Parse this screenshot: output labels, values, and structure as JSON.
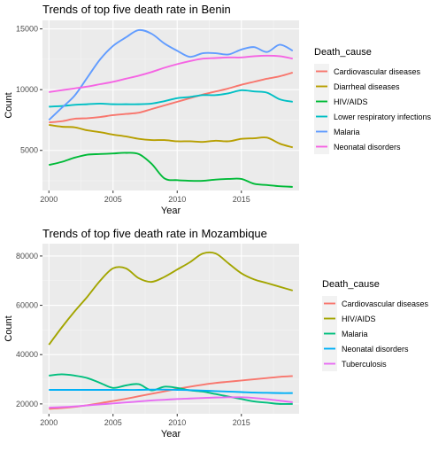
{
  "chart_data": [
    {
      "type": "line",
      "title": "Trends of top five death rate in Benin",
      "xlabel": "Year",
      "ylabel": "Count",
      "xlim": [
        1999.5,
        2019.5
      ],
      "ylim": [
        1700,
        15700
      ],
      "x_ticks": [
        2000,
        2005,
        2010,
        2015
      ],
      "y_ticks": [
        5000,
        10000,
        15000
      ],
      "grid": true,
      "legend": {
        "title": "Death_cause",
        "position": "right"
      },
      "x": [
        2000,
        2001,
        2002,
        2003,
        2004,
        2005,
        2006,
        2007,
        2008,
        2009,
        2010,
        2011,
        2012,
        2013,
        2014,
        2015,
        2016,
        2017,
        2018,
        2019
      ],
      "series": [
        {
          "name": "Cardiovascular diseases",
          "color": "#F8766D",
          "values": [
            7300,
            7400,
            7600,
            7650,
            7750,
            7900,
            8000,
            8100,
            8400,
            8700,
            9000,
            9300,
            9600,
            9850,
            10100,
            10400,
            10650,
            10900,
            11100,
            11400
          ]
        },
        {
          "name": "Diarrheal diseases",
          "color": "#B79F00",
          "values": [
            7100,
            6950,
            6900,
            6650,
            6500,
            6300,
            6150,
            5950,
            5850,
            5850,
            5750,
            5750,
            5700,
            5800,
            5750,
            5950,
            6000,
            6050,
            5550,
            5250
          ]
        },
        {
          "name": "HIV/AIDS",
          "color": "#00BA38",
          "values": [
            3800,
            4050,
            4400,
            4650,
            4700,
            4750,
            4800,
            4700,
            3900,
            2700,
            2550,
            2500,
            2500,
            2600,
            2650,
            2650,
            2250,
            2150,
            2050,
            2000
          ]
        },
        {
          "name": "Lower respiratory infections",
          "color": "#00BFC4",
          "values": [
            8600,
            8650,
            8750,
            8800,
            8850,
            8800,
            8800,
            8800,
            8850,
            9050,
            9300,
            9400,
            9550,
            9550,
            9700,
            9950,
            9850,
            9750,
            9200,
            9000
          ]
        },
        {
          "name": "Malaria",
          "color": "#619CFF",
          "values": [
            7500,
            8500,
            9500,
            11000,
            12500,
            13600,
            14300,
            14900,
            14600,
            13800,
            13200,
            12700,
            13000,
            13000,
            12900,
            13300,
            13500,
            13100,
            13700,
            13200
          ]
        },
        {
          "name": "Neonatal disorders",
          "color": "#F564E3",
          "values": [
            9800,
            9950,
            10100,
            10250,
            10450,
            10650,
            10900,
            11150,
            11450,
            11800,
            12100,
            12350,
            12550,
            12600,
            12650,
            12650,
            12750,
            12800,
            12750,
            12550
          ]
        }
      ]
    },
    {
      "type": "line",
      "title": "Trends of top five death rate in Mozambique",
      "xlabel": "Year",
      "ylabel": "Count",
      "xlim": [
        1999.5,
        2019.5
      ],
      "ylim": [
        16000,
        85000
      ],
      "x_ticks": [
        2000,
        2005,
        2010,
        2015
      ],
      "y_ticks": [
        20000,
        40000,
        60000,
        80000
      ],
      "grid": true,
      "legend": {
        "title": "Death_cause",
        "position": "right"
      },
      "x": [
        2000,
        2001,
        2002,
        2003,
        2004,
        2005,
        2006,
        2007,
        2008,
        2009,
        2010,
        2011,
        2012,
        2013,
        2014,
        2015,
        2016,
        2017,
        2018,
        2019
      ],
      "series": [
        {
          "name": "Cardiovascular diseases",
          "color": "#F8766D",
          "values": [
            18000,
            18300,
            18800,
            19500,
            20300,
            21200,
            22100,
            23100,
            24100,
            25100,
            26100,
            27000,
            27800,
            28500,
            29000,
            29500,
            30000,
            30500,
            31000,
            31300
          ]
        },
        {
          "name": "HIV/AIDS",
          "color": "#A3A500",
          "values": [
            44000,
            51000,
            57500,
            63500,
            70000,
            75000,
            75000,
            71000,
            69500,
            71500,
            74500,
            77500,
            81000,
            81000,
            77000,
            73000,
            70500,
            69000,
            67500,
            66000
          ]
        },
        {
          "name": "Malaria",
          "color": "#00BF7D",
          "values": [
            31500,
            32000,
            31500,
            30500,
            28500,
            26500,
            27500,
            28000,
            25500,
            27000,
            26500,
            25500,
            25000,
            24000,
            23000,
            22000,
            21000,
            20500,
            20000,
            20000
          ]
        },
        {
          "name": "Neonatal disorders",
          "color": "#00B0F6",
          "values": [
            25700,
            25700,
            25700,
            25700,
            25700,
            25700,
            25700,
            25700,
            25800,
            25800,
            25700,
            25600,
            25400,
            25200,
            25000,
            24800,
            24600,
            24500,
            24400,
            24400
          ]
        },
        {
          "name": "Tuberculosis",
          "color": "#E76BF3",
          "values": [
            18500,
            18700,
            19000,
            19400,
            19800,
            20200,
            20600,
            21000,
            21400,
            21700,
            22000,
            22200,
            22400,
            22600,
            22700,
            22700,
            22400,
            21900,
            21300,
            20700
          ]
        }
      ]
    }
  ]
}
